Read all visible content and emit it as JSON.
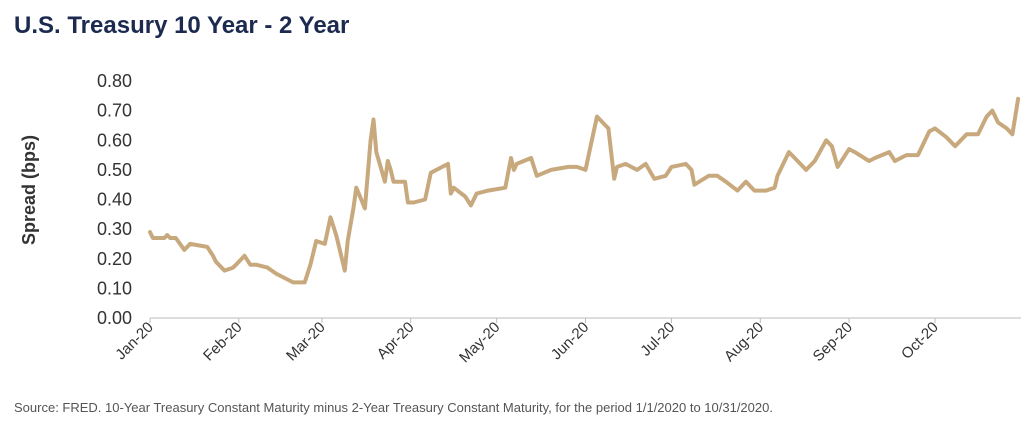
{
  "title": "U.S. Treasury 10 Year - 2 Year",
  "source": "Source: FRED. 10-Year Treasury Constant Maturity minus 2-Year Treasury Constant Maturity, for the period 1/1/2020 to 10/31/2020.",
  "chart_data": {
    "type": "line",
    "title": "U.S. Treasury 10 Year - 2 Year",
    "xlabel": "",
    "ylabel": "Spread (bps)",
    "ylim": [
      0,
      0.8
    ],
    "yticks": [
      "0.00",
      "0.10",
      "0.20",
      "0.30",
      "0.40",
      "0.50",
      "0.60",
      "0.70",
      "0.80"
    ],
    "xticks": [
      "Jan-20",
      "Feb-20",
      "Mar-20",
      "Apr-20",
      "May-20",
      "Jun-20",
      "Jul-20",
      "Aug-20",
      "Sep-20",
      "Oct-20"
    ],
    "grid": false,
    "line_color": "#c8a97e",
    "series": [
      {
        "x": [
          "2020-01-01",
          "2020-01-02",
          "2020-01-06",
          "2020-01-07",
          "2020-01-08",
          "2020-01-10",
          "2020-01-13",
          "2020-01-15",
          "2020-01-21",
          "2020-01-23",
          "2020-01-24",
          "2020-01-27",
          "2020-01-30",
          "2020-01-31",
          "2020-02-03",
          "2020-02-05",
          "2020-02-07",
          "2020-02-11",
          "2020-02-14",
          "2020-02-18",
          "2020-02-20",
          "2020-02-21",
          "2020-02-24",
          "2020-02-26",
          "2020-02-28",
          "2020-03-02",
          "2020-03-04",
          "2020-03-06",
          "2020-03-09",
          "2020-03-10",
          "2020-03-12",
          "2020-03-13",
          "2020-03-16",
          "2020-03-18",
          "2020-03-19",
          "2020-03-20",
          "2020-03-23",
          "2020-03-24",
          "2020-03-25",
          "2020-03-26",
          "2020-03-27",
          "2020-03-30",
          "2020-03-31",
          "2020-04-02",
          "2020-04-06",
          "2020-04-08",
          "2020-04-14",
          "2020-04-15",
          "2020-04-16",
          "2020-04-20",
          "2020-04-22",
          "2020-04-24",
          "2020-04-28",
          "2020-05-04",
          "2020-05-06",
          "2020-05-07",
          "2020-05-08",
          "2020-05-13",
          "2020-05-15",
          "2020-05-20",
          "2020-05-26",
          "2020-05-29",
          "2020-06-01",
          "2020-06-03",
          "2020-06-05",
          "2020-06-09",
          "2020-06-11",
          "2020-06-12",
          "2020-06-15",
          "2020-06-19",
          "2020-06-22",
          "2020-06-25",
          "2020-06-29",
          "2020-07-01",
          "2020-07-06",
          "2020-07-08",
          "2020-07-09",
          "2020-07-14",
          "2020-07-17",
          "2020-07-20",
          "2020-07-24",
          "2020-07-27",
          "2020-07-30",
          "2020-08-03",
          "2020-08-06",
          "2020-08-07",
          "2020-08-11",
          "2020-08-13",
          "2020-08-17",
          "2020-08-20",
          "2020-08-24",
          "2020-08-26",
          "2020-08-28",
          "2020-09-01",
          "2020-09-03",
          "2020-09-08",
          "2020-09-10",
          "2020-09-15",
          "2020-09-17",
          "2020-09-21",
          "2020-09-25",
          "2020-09-29",
          "2020-10-01",
          "2020-10-05",
          "2020-10-08",
          "2020-10-12",
          "2020-10-16",
          "2020-10-19",
          "2020-10-21",
          "2020-10-23",
          "2020-10-26",
          "2020-10-28",
          "2020-10-30"
        ],
        "values": [
          0.29,
          0.27,
          0.27,
          0.28,
          0.27,
          0.27,
          0.23,
          0.25,
          0.24,
          0.21,
          0.19,
          0.16,
          0.17,
          0.18,
          0.21,
          0.18,
          0.18,
          0.17,
          0.15,
          0.13,
          0.12,
          0.12,
          0.12,
          0.18,
          0.26,
          0.25,
          0.34,
          0.28,
          0.16,
          0.26,
          0.37,
          0.44,
          0.37,
          0.6,
          0.67,
          0.56,
          0.46,
          0.53,
          0.5,
          0.46,
          0.46,
          0.46,
          0.39,
          0.39,
          0.4,
          0.49,
          0.52,
          0.42,
          0.44,
          0.41,
          0.38,
          0.42,
          0.43,
          0.44,
          0.54,
          0.5,
          0.52,
          0.54,
          0.48,
          0.5,
          0.51,
          0.51,
          0.5,
          0.59,
          0.68,
          0.64,
          0.47,
          0.51,
          0.52,
          0.5,
          0.52,
          0.47,
          0.48,
          0.51,
          0.52,
          0.5,
          0.45,
          0.48,
          0.48,
          0.46,
          0.43,
          0.46,
          0.43,
          0.43,
          0.44,
          0.48,
          0.56,
          0.54,
          0.5,
          0.53,
          0.6,
          0.58,
          0.51,
          0.57,
          0.56,
          0.53,
          0.54,
          0.56,
          0.53,
          0.55,
          0.55,
          0.63,
          0.64,
          0.61,
          0.58,
          0.62,
          0.62,
          0.68,
          0.7,
          0.66,
          0.64,
          0.62,
          0.74
        ]
      }
    ]
  }
}
